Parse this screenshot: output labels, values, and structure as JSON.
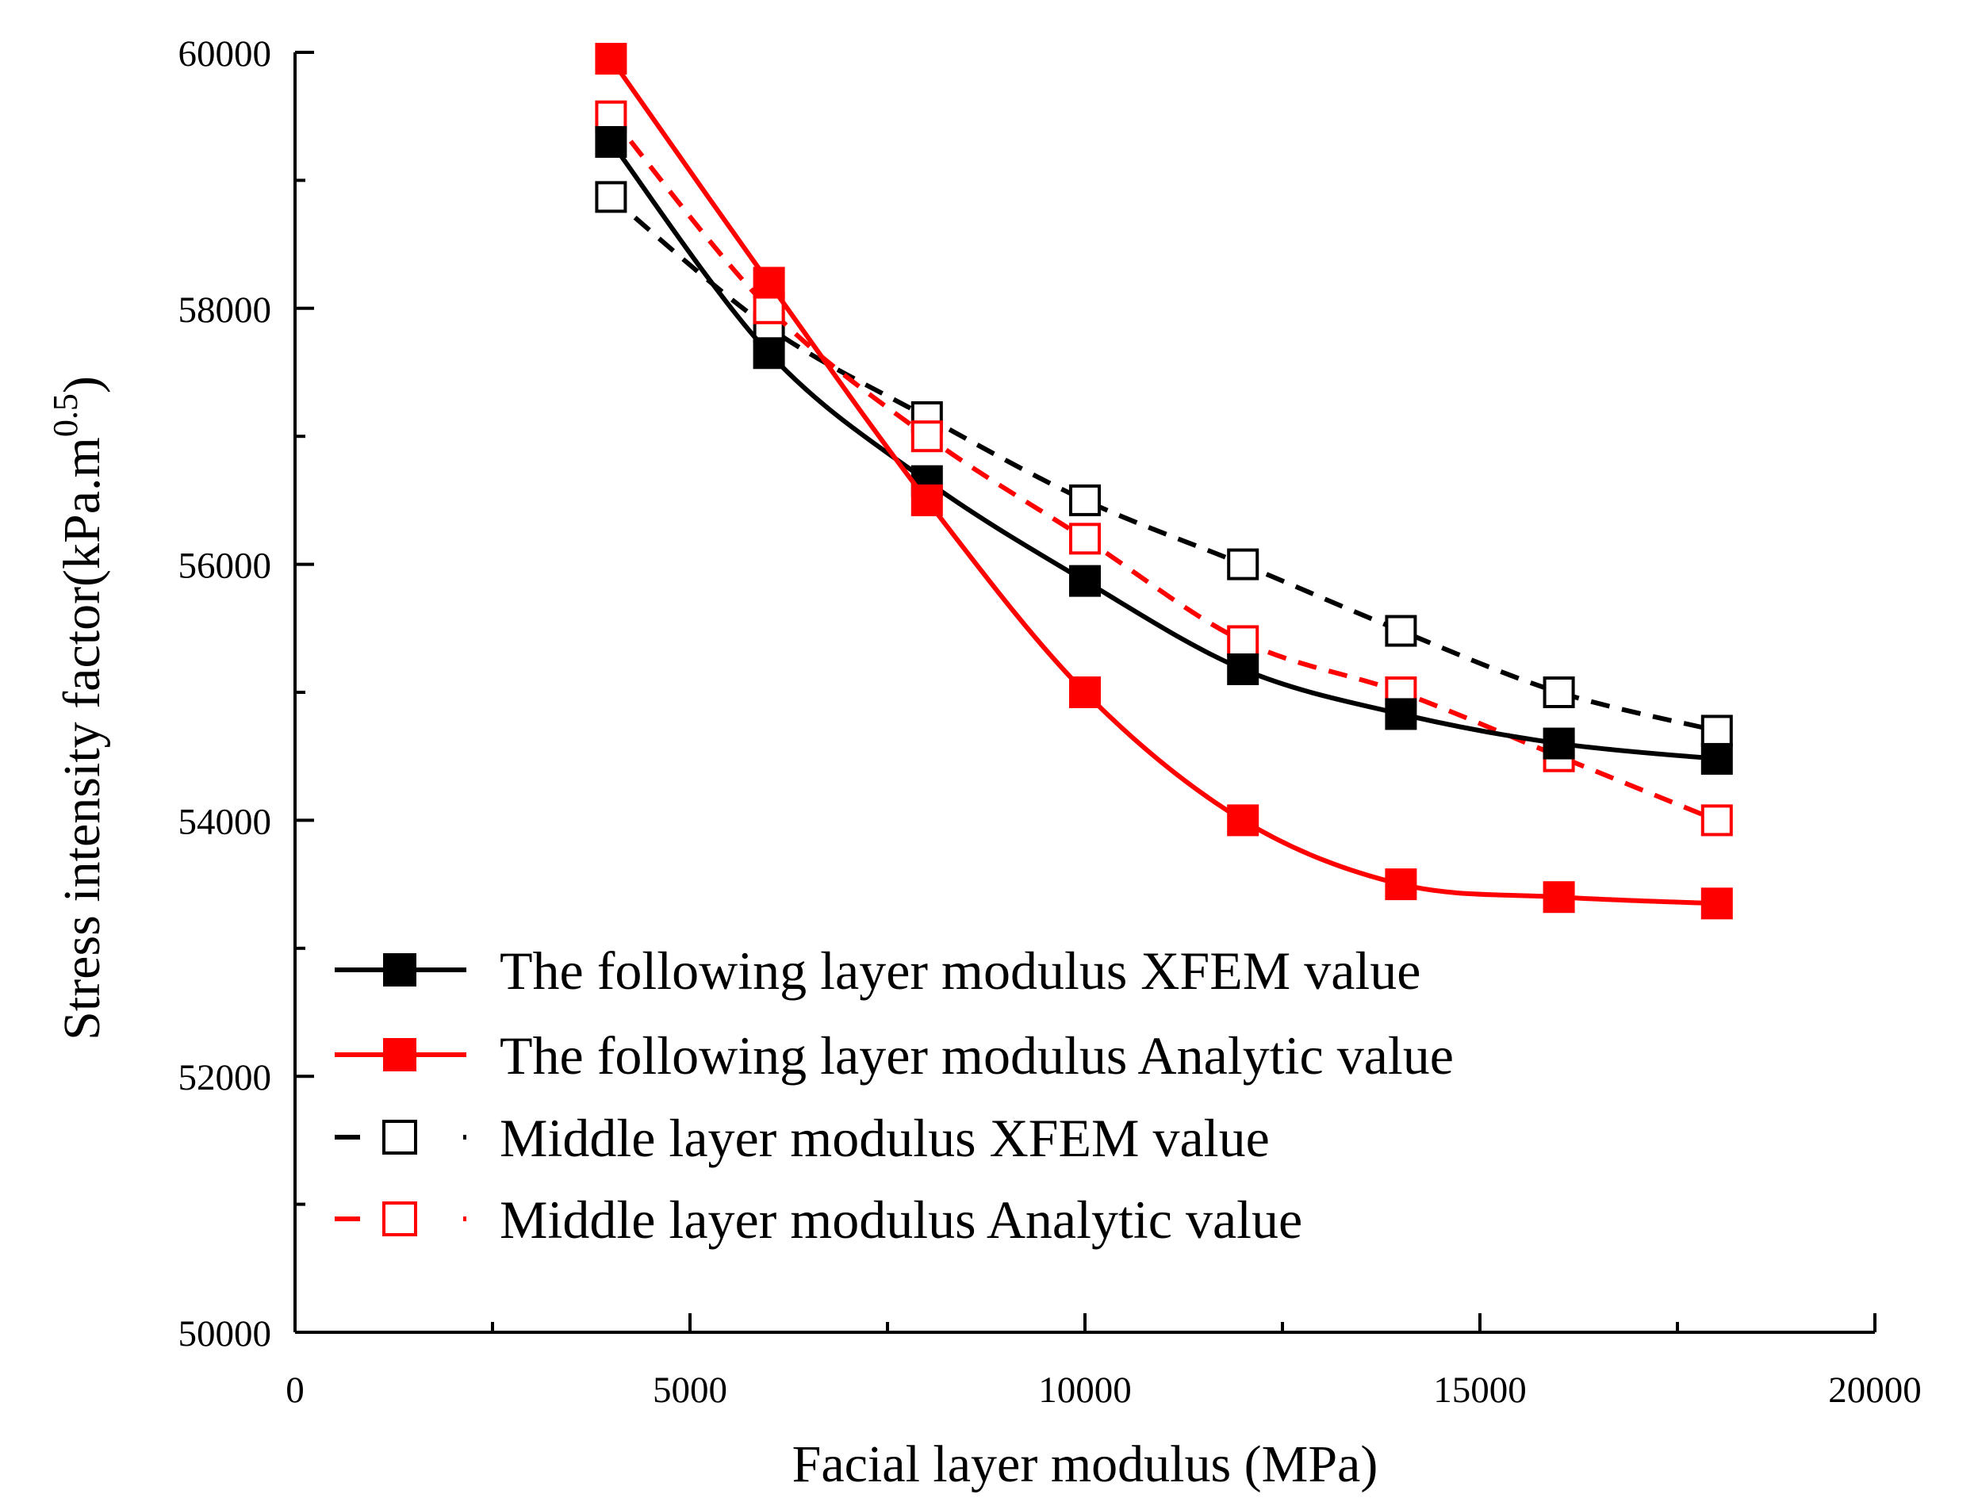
{
  "chart_data": {
    "type": "line",
    "xlabel": "Facial layer modulus  (MPa)",
    "ylabel": "Stress intensity factor(kPa.m",
    "ylabel_superscript": "0.5",
    "ylabel_suffix": ")",
    "xlim": [
      0,
      20000
    ],
    "ylim": [
      50000,
      60000
    ],
    "x_ticks": [
      0,
      5000,
      10000,
      15000,
      20000
    ],
    "x_tick_labels": [
      "0",
      "5000",
      "10000",
      "15000",
      "20000"
    ],
    "y_ticks": [
      50000,
      52000,
      54000,
      56000,
      58000,
      60000
    ],
    "y_tick_labels": [
      "50000",
      "52000",
      "54000",
      "56000",
      "58000",
      "60000"
    ],
    "grid": false,
    "legend_position": "bottom-left",
    "x": [
      4000,
      6000,
      8000,
      10000,
      12000,
      14000,
      16000,
      18000
    ],
    "series": [
      {
        "name": "The following layer modulus  XFEM value",
        "color": "#000000",
        "marker": "filled-square",
        "line": "solid",
        "values": [
          59300,
          57650,
          56650,
          55870,
          55180,
          54830,
          54600,
          54480
        ]
      },
      {
        "name": "The following layer modulus  Analytic value",
        "color": "#ff0000",
        "marker": "filled-square",
        "line": "solid",
        "values": [
          59950,
          58200,
          56500,
          55000,
          54000,
          53500,
          53400,
          53350
        ]
      },
      {
        "name": "Middle layer modulus  XFEM value",
        "color": "#000000",
        "marker": "open-square",
        "line": "dashed",
        "values": [
          58870,
          57850,
          57150,
          56500,
          56000,
          55480,
          55000,
          54700
        ]
      },
      {
        "name": "Middle layer modulus Analytic value",
        "color": "#ff0000",
        "marker": "open-square",
        "line": "dashed",
        "values": [
          59500,
          58000,
          57000,
          56200,
          55400,
          55000,
          54500,
          54000
        ]
      }
    ]
  }
}
